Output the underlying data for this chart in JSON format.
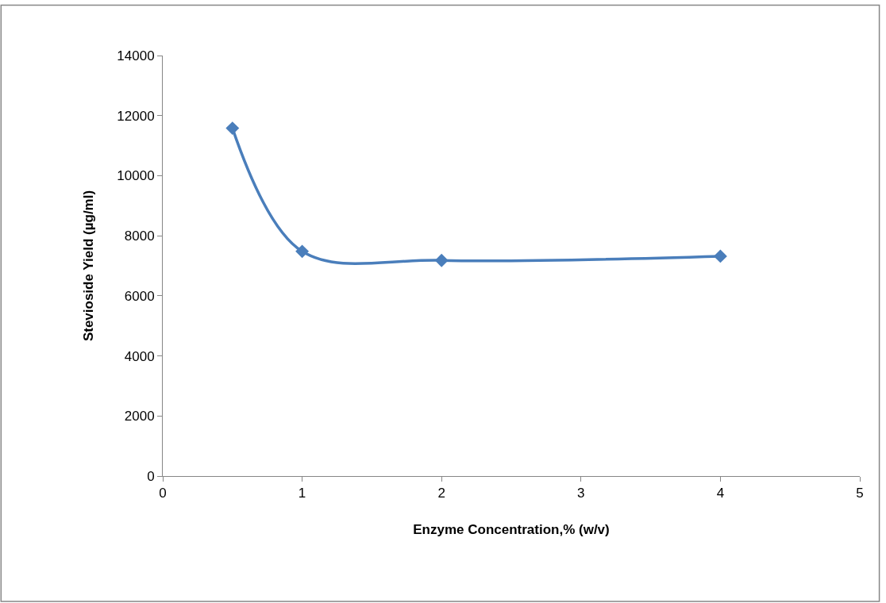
{
  "chart_data": {
    "type": "line",
    "xlabel": "Enzyme Concentration,% (w/v)",
    "ylabel": "Stevioside Yield (µg/ml)",
    "x": [
      0.5,
      1,
      2,
      4
    ],
    "series": [
      {
        "color": "#4a7ebb",
        "values": [
          11580,
          7480,
          7180,
          7320
        ]
      }
    ],
    "xlim": [
      0,
      5
    ],
    "xticks": [
      0,
      1,
      2,
      3,
      4,
      5
    ],
    "ylim": [
      0,
      14000
    ],
    "yticks": [
      0,
      2000,
      4000,
      6000,
      8000,
      10000,
      12000,
      14000
    ],
    "marker": "diamond",
    "line_style": "solid"
  }
}
